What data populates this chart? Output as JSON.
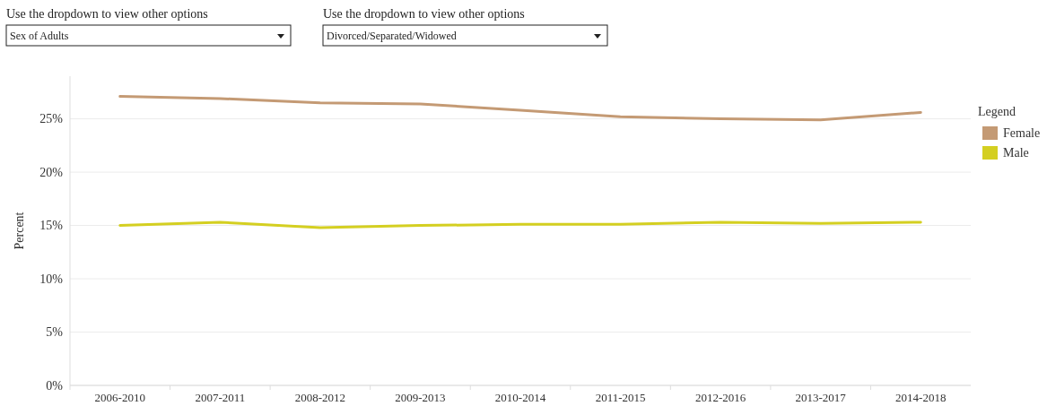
{
  "chart_data": {
    "type": "line",
    "ylabel": "Percent",
    "legend_title": "Legend",
    "annotations": [
      "Use the dropdown to view other options",
      "Sex of Adults",
      "Use the dropdown to view other options",
      "Divorced/Separated/Widowed"
    ],
    "categories": [
      "2006-2010",
      "2007-2011",
      "2008-2012",
      "2009-2013",
      "2010-2014",
      "2011-2015",
      "2012-2016",
      "2013-2017",
      "2014-2018"
    ],
    "series": [
      {
        "name": "Female",
        "color": "#c49a74",
        "values": [
          27.1,
          26.9,
          26.5,
          26.4,
          25.8,
          25.2,
          25.0,
          24.9,
          25.6
        ]
      },
      {
        "name": "Male",
        "color": "#d4cf21",
        "values": [
          15.0,
          15.3,
          14.8,
          15.0,
          15.1,
          15.1,
          15.3,
          15.2,
          15.3
        ]
      }
    ],
    "ylim": [
      0,
      29
    ],
    "yticks": [
      {
        "value": 0,
        "label": "0%"
      },
      {
        "value": 5,
        "label": "5%"
      },
      {
        "value": 10,
        "label": "10%"
      },
      {
        "value": 15,
        "label": "15%"
      },
      {
        "value": 20,
        "label": "20%"
      },
      {
        "value": 25,
        "label": "25%"
      }
    ],
    "grid": "y",
    "legend": "top right",
    "marker": "none",
    "line_style": "solid"
  }
}
